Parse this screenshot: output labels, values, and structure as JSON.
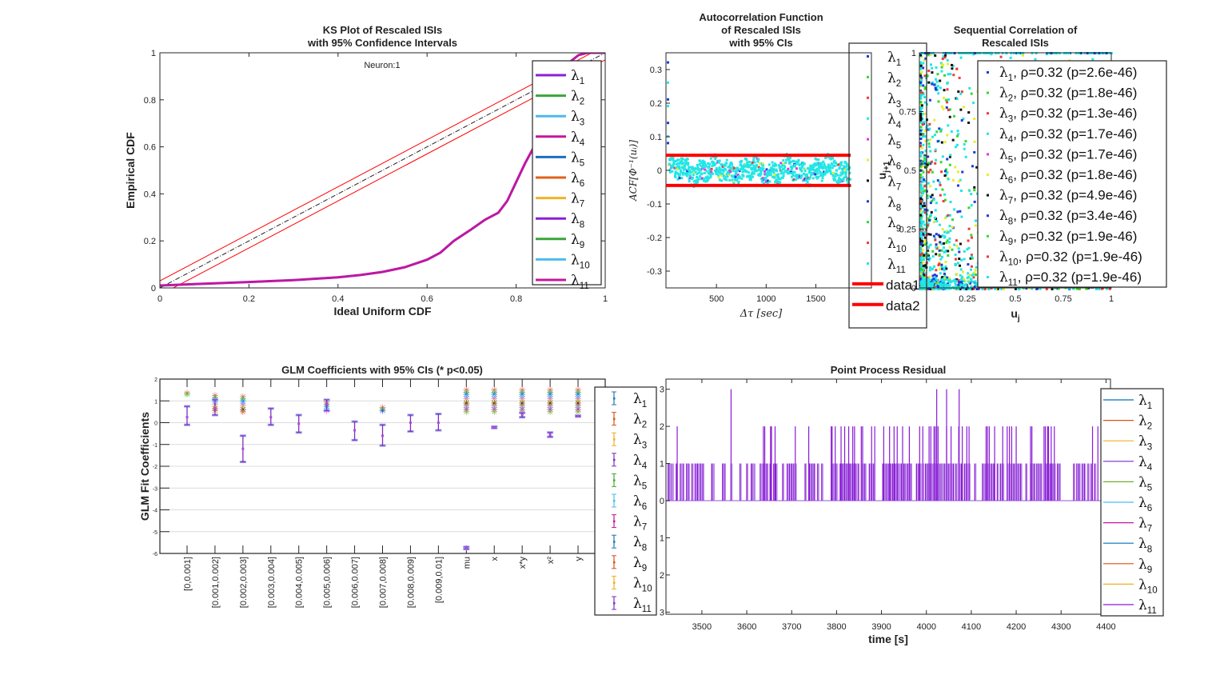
{
  "figure": {
    "background": "#ffffff"
  },
  "chart_data": [
    {
      "id": "ks",
      "type": "line",
      "title": "KS Plot of Rescaled ISIs",
      "subtitle": "with 95% Confidence Intervals",
      "annotation": "Neuron:1",
      "xlabel": "Ideal Uniform CDF",
      "ylabel": "Empirical CDF",
      "xlim": [
        0,
        1
      ],
      "ylim": [
        0,
        1
      ],
      "xticks": [
        "0",
        "0.2",
        "0.4",
        "0.6",
        "0.8",
        "1"
      ],
      "yticks": [
        "0",
        "0.2",
        "0.4",
        "0.6",
        "0.8",
        "1"
      ],
      "legend_position": "right-inside",
      "reference_line": {
        "name": "ideal",
        "x": [
          0,
          1
        ],
        "y": [
          0,
          1
        ],
        "color": "#000000",
        "style": "dash-dot"
      },
      "ci_lines": [
        {
          "name": "upper-ci",
          "x": [
            0,
            1
          ],
          "y": [
            0.03,
            1.03
          ],
          "color": "#ff0000"
        },
        {
          "name": "lower-ci",
          "x": [
            0,
            1
          ],
          "y": [
            -0.03,
            0.97
          ],
          "color": "#ff0000"
        }
      ],
      "curve_x": [
        0,
        0.1,
        0.2,
        0.3,
        0.4,
        0.45,
        0.5,
        0.55,
        0.6,
        0.63,
        0.66,
        0.7,
        0.73,
        0.76,
        0.78,
        0.8,
        0.82,
        0.84,
        0.86,
        0.88,
        0.9,
        0.92,
        0.94,
        0.96,
        1
      ],
      "curve_y": [
        0.01,
        0.018,
        0.025,
        0.033,
        0.045,
        0.055,
        0.068,
        0.088,
        0.12,
        0.15,
        0.2,
        0.25,
        0.29,
        0.32,
        0.37,
        0.45,
        0.53,
        0.6,
        0.66,
        0.75,
        0.85,
        0.96,
        0.99,
        1.0,
        1.0
      ],
      "series": [
        {
          "name": "λ1",
          "label": "λ",
          "sub": "1",
          "color": "#8b1fd6"
        },
        {
          "name": "λ2",
          "label": "λ",
          "sub": "2",
          "color": "#3aa53a"
        },
        {
          "name": "λ3",
          "label": "λ",
          "sub": "3",
          "color": "#4dbbea"
        },
        {
          "name": "λ4",
          "label": "λ",
          "sub": "4",
          "color": "#c4179b"
        },
        {
          "name": "λ5",
          "label": "λ",
          "sub": "5",
          "color": "#1a6fbf"
        },
        {
          "name": "λ6",
          "label": "λ",
          "sub": "6",
          "color": "#e0621b"
        },
        {
          "name": "λ7",
          "label": "λ",
          "sub": "7",
          "color": "#efb325"
        },
        {
          "name": "λ8",
          "label": "λ",
          "sub": "8",
          "color": "#8b1fd6"
        },
        {
          "name": "λ9",
          "label": "λ",
          "sub": "9",
          "color": "#3aa53a"
        },
        {
          "name": "λ10",
          "label": "λ",
          "sub": "10",
          "color": "#4dbbea"
        },
        {
          "name": "λ11",
          "label": "λ",
          "sub": "11",
          "color": "#c4179b"
        }
      ]
    },
    {
      "id": "acf",
      "type": "scatter",
      "title": [
        "Autocorrelation Function",
        "of Rescaled ISIs",
        "with 95% CIs"
      ],
      "xlabel": "Δτ [sec]",
      "ylabel": "ACF[Φ⁻¹(uᵢ)]",
      "xlim": [
        0,
        1850
      ],
      "ylim": [
        -0.35,
        0.35
      ],
      "xticks": [
        500,
        1000,
        1500
      ],
      "xtick_labels": [
        "500",
        "1000",
        "1500"
      ],
      "yticks": [
        0.3,
        0.2,
        0.1,
        0,
        -0.1,
        -0.2,
        -0.3
      ],
      "ytick_labels": [
        "0.3",
        "0.2",
        "0.1",
        "0",
        "-0.1",
        "-0.2",
        "-0.3"
      ],
      "ci_bounds": [
        0.045,
        -0.045
      ],
      "ci_color": "#ff0000",
      "initial_peak": [
        0.32,
        0.26,
        0.21,
        0.19,
        0.14,
        0.1,
        0.08
      ],
      "noise_band": [
        -0.06,
        0.07
      ],
      "point_color": "#22e6e6",
      "legend_position": "right-outside",
      "legend": [
        {
          "label": "λ",
          "sub": "1",
          "color": "#1f3bd6",
          "kind": "dot"
        },
        {
          "label": "λ",
          "sub": "2",
          "color": "#2fdc2f",
          "kind": "dot"
        },
        {
          "label": "λ",
          "sub": "3",
          "color": "#f03a3a",
          "kind": "dot"
        },
        {
          "label": "λ",
          "sub": "4",
          "color": "#22e6e6",
          "kind": "dot"
        },
        {
          "label": "λ",
          "sub": "5",
          "color": "#e632e6",
          "kind": "dot"
        },
        {
          "label": "λ",
          "sub": "6",
          "color": "#ecec2a",
          "kind": "dot"
        },
        {
          "label": "λ",
          "sub": "7",
          "color": "#111111",
          "kind": "dot"
        },
        {
          "label": "λ",
          "sub": "8",
          "color": "#1f3bd6",
          "kind": "dot"
        },
        {
          "label": "λ",
          "sub": "9",
          "color": "#2fdc2f",
          "kind": "dot"
        },
        {
          "label": "λ",
          "sub": "10",
          "color": "#f03a3a",
          "kind": "dot"
        },
        {
          "label": "λ",
          "sub": "11",
          "color": "#22e6e6",
          "kind": "dot"
        },
        {
          "label": "data1",
          "sub": "",
          "color": "#ff0000",
          "kind": "line"
        },
        {
          "label": "data2",
          "sub": "",
          "color": "#ff0000",
          "kind": "line"
        }
      ]
    },
    {
      "id": "seq",
      "type": "scatter",
      "title": [
        "Sequential Correlation of",
        "Rescaled ISIs"
      ],
      "xlabel": "u",
      "xlabel_sub": "j",
      "ylabel": "u",
      "ylabel_sub": "j+1",
      "xlim": [
        0,
        1
      ],
      "ylim": [
        0,
        1
      ],
      "xticks": [
        0.25,
        0.5,
        0.75,
        1
      ],
      "xtick_labels": [
        "0.25",
        "0.5",
        "0.75",
        "1"
      ],
      "yticks": [
        0,
        0.25,
        0.5,
        0.75,
        1
      ],
      "ytick_labels": [
        "0",
        "0.25",
        "0.5",
        "0.75",
        "1"
      ],
      "legend_position": "right-inside",
      "legend": [
        {
          "label": "λ",
          "sub": "1",
          "rest": ", ρ=0.32 (p=2.6e-46)",
          "color": "#1f3bd6"
        },
        {
          "label": "λ",
          "sub": "2",
          "rest": ", ρ=0.32 (p=1.8e-46)",
          "color": "#2fdc2f"
        },
        {
          "label": "λ",
          "sub": "3",
          "rest": ", ρ=0.32 (p=1.3e-46)",
          "color": "#f03a3a"
        },
        {
          "label": "λ",
          "sub": "4",
          "rest": ", ρ=0.32 (p=1.7e-46)",
          "color": "#22e6e6"
        },
        {
          "label": "λ",
          "sub": "5",
          "rest": ", ρ=0.32 (p=1.7e-46)",
          "color": "#e632e6"
        },
        {
          "label": "λ",
          "sub": "6",
          "rest": ", ρ=0.32 (p=1.8e-46)",
          "color": "#ecec2a"
        },
        {
          "label": "λ",
          "sub": "7",
          "rest": ", ρ=0.32 (p=4.9e-46)",
          "color": "#111111"
        },
        {
          "label": "λ",
          "sub": "8",
          "rest": ", ρ=0.32 (p=3.4e-46)",
          "color": "#1f3bd6"
        },
        {
          "label": "λ",
          "sub": "9",
          "rest": ", ρ=0.32 (p=1.9e-46)",
          "color": "#2fdc2f"
        },
        {
          "label": "λ",
          "sub": "10",
          "rest": ", ρ=0.32 (p=1.9e-46)",
          "color": "#f03a3a"
        },
        {
          "label": "λ",
          "sub": "11",
          "rest": ", ρ=0.32 (p=1.9e-46)",
          "color": "#22e6e6"
        }
      ]
    },
    {
      "id": "glm",
      "type": "errorbar",
      "title": "GLM Coefficients with 95% CIs (* p<0.05)",
      "ylabel": "GLM Fit Coefficients",
      "ylim": [
        -6,
        2
      ],
      "yticks": [
        2,
        1,
        0,
        -1,
        -2,
        -3,
        -4,
        -5,
        -6
      ],
      "ytick_labels": [
        "2",
        "1",
        "0",
        "-1",
        "-2",
        "-3",
        "-4",
        "-5",
        "-6"
      ],
      "grid": true,
      "categories": [
        "[0,0.001]",
        "[0.001,0.002]",
        "[0.002,0.003]",
        "[0.003,0.004]",
        "[0.004,0.005]",
        "[0.005,0.006]",
        "[0.006,0.007]",
        "[0.007,0.008]",
        "[0.008,0.009]",
        "[0.009,0.01]",
        "mu",
        "x",
        "x*y",
        "x²",
        "y"
      ],
      "lambda11_estimate": [
        0.25,
        0.65,
        -1.2,
        0.25,
        -0.05,
        0.85,
        -0.35,
        -0.6,
        0.0,
        0.0,
        -5.75,
        -0.22,
        0.35,
        -0.55,
        0.3
      ],
      "lambda11_ci_low": [
        -0.1,
        0.35,
        -1.8,
        -0.1,
        -0.45,
        0.55,
        -0.8,
        -1.05,
        -0.4,
        -0.35,
        -5.8,
        -0.25,
        0.25,
        -0.65,
        0.28
      ],
      "lambda11_ci_high": [
        0.75,
        1.05,
        -0.6,
        0.65,
        0.35,
        1.05,
        0.05,
        -0.1,
        0.35,
        0.4,
        -5.7,
        -0.18,
        0.45,
        -0.45,
        0.32
      ],
      "significant_stars": [
        {
          "cat": 0,
          "values": [
            1.35,
            1.3
          ]
        },
        {
          "cat": 1,
          "values": [
            1.25,
            1.15,
            1.05,
            0.95,
            0.85,
            0.75,
            0.65,
            0.55
          ]
        },
        {
          "cat": 2,
          "values": [
            1.2,
            1.1,
            1.0,
            0.9,
            0.8,
            0.7,
            0.6,
            0.5
          ]
        },
        {
          "cat": 5,
          "values": [
            0.95,
            0.85,
            0.75,
            0.65,
            0.55
          ]
        },
        {
          "cat": 7,
          "values": [
            0.7,
            0.6,
            0.55
          ]
        },
        {
          "cat": 10,
          "values": [
            1.5,
            1.4,
            1.3,
            1.2,
            1.1,
            1.0,
            0.9,
            0.8,
            0.7,
            0.6,
            0.5
          ]
        },
        {
          "cat": 11,
          "values": [
            1.5,
            1.4,
            1.3,
            1.2,
            1.1,
            1.0,
            0.9,
            0.8,
            0.7,
            0.6,
            0.5
          ]
        },
        {
          "cat": 12,
          "values": [
            1.5,
            1.4,
            1.3,
            1.2,
            1.1,
            1.0,
            0.9,
            0.8,
            0.7,
            0.6,
            0.5
          ]
        },
        {
          "cat": 13,
          "values": [
            1.5,
            1.4,
            1.3,
            1.2,
            1.1,
            1.0,
            0.9,
            0.8,
            0.7,
            0.6,
            0.5
          ]
        },
        {
          "cat": 14,
          "values": [
            1.5,
            1.4,
            1.3,
            1.2,
            1.1,
            1.0,
            0.9,
            0.8,
            0.7,
            0.6,
            0.5
          ]
        }
      ],
      "legend_position": "right-outside",
      "series": [
        {
          "label": "λ",
          "sub": "1",
          "color": "#1f77b4"
        },
        {
          "label": "λ",
          "sub": "2",
          "color": "#d95319"
        },
        {
          "label": "λ",
          "sub": "3",
          "color": "#edb120"
        },
        {
          "label": "λ",
          "sub": "4",
          "color": "#7e2fbd"
        },
        {
          "label": "λ",
          "sub": "5",
          "color": "#4aa834"
        },
        {
          "label": "λ",
          "sub": "6",
          "color": "#4dbeee"
        },
        {
          "label": "λ",
          "sub": "7",
          "color": "#c4179b"
        },
        {
          "label": "λ",
          "sub": "8",
          "color": "#1f77b4"
        },
        {
          "label": "λ",
          "sub": "9",
          "color": "#d95319"
        },
        {
          "label": "λ",
          "sub": "10",
          "color": "#edb120"
        },
        {
          "label": "λ",
          "sub": "11",
          "color": "#7e2fbd"
        }
      ]
    },
    {
      "id": "residual",
      "type": "line",
      "title": "Point Process Residual",
      "xlabel": "time [s]",
      "xlim": [
        3420,
        4410
      ],
      "ylim": [
        -3.1,
        3.1
      ],
      "xticks": [
        3500,
        3600,
        3700,
        3800,
        3900,
        4000,
        4100,
        4200,
        4300,
        4400
      ],
      "xtick_labels": [
        "3500",
        "3600",
        "3700",
        "3800",
        "3900",
        "4000",
        "4100",
        "4200",
        "4300",
        "4400"
      ],
      "yticks": [
        3,
        2,
        1,
        0,
        -1,
        -2,
        -3
      ],
      "ytick_labels": [
        "3",
        "2",
        "1",
        "0",
        "1",
        "2",
        "3"
      ],
      "spikes_to_1": [
        3425,
        3428,
        3431,
        3434,
        3443,
        3452,
        3458,
        3466,
        3470,
        3478,
        3485,
        3490,
        3493,
        3497,
        3502,
        3522,
        3525,
        3546,
        3550,
        3565,
        3585,
        3600,
        3610,
        3613,
        3616,
        3630,
        3636,
        3640,
        3645,
        3652,
        3660,
        3665,
        3680,
        3690,
        3695,
        3700,
        3704,
        3708,
        3730,
        3740,
        3745,
        3750,
        3758,
        3767,
        3790,
        3793,
        3797,
        3800,
        3808,
        3812,
        3815,
        3818,
        3822,
        3825,
        3830,
        3835,
        3838,
        3842,
        3848,
        3858,
        3863,
        3873,
        3878,
        3882,
        3903,
        3906,
        3910,
        3915,
        3920,
        3925,
        3930,
        3934,
        3937,
        3940,
        3944,
        3950,
        3953,
        3958,
        3965,
        3978,
        3983,
        3986,
        3992,
        3998,
        4002,
        4005,
        4008,
        4010,
        4013,
        4016,
        4020,
        4023,
        4026,
        4030,
        4033,
        4036,
        4040,
        4045,
        4050,
        4055,
        4060,
        4066,
        4073,
        4078,
        4085,
        4090,
        4095,
        4108,
        4125,
        4128,
        4132,
        4136,
        4140,
        4145,
        4150,
        4158,
        4165,
        4170,
        4180,
        4185,
        4190,
        4195,
        4200,
        4205,
        4210,
        4222,
        4232,
        4235,
        4240,
        4246,
        4250,
        4255,
        4265,
        4268,
        4272,
        4276,
        4280,
        4285,
        4292,
        4296,
        4328,
        4335,
        4340,
        4347,
        4352,
        4360,
        4367,
        4375
      ],
      "spikes_to_2": [
        3445,
        3637,
        3640,
        3653,
        3655,
        3663,
        3708,
        3738,
        3788,
        3790,
        3797,
        3810,
        3818,
        3827,
        3836,
        3840,
        3855,
        3858,
        3878,
        3885,
        3905,
        3918,
        3928,
        3935,
        3947,
        3962,
        3985,
        3992,
        4006,
        4010,
        4017,
        4020,
        4026,
        4045,
        4055,
        4072,
        4080,
        4090,
        4095,
        4133,
        4136,
        4140,
        4152,
        4170,
        4180,
        4185,
        4190,
        4200,
        4232,
        4235,
        4262,
        4265,
        4270,
        4272,
        4278,
        4285,
        4370,
        4382
      ],
      "spikes_to_3": [
        3565,
        4023,
        4045,
        4073
      ],
      "legend_position": "right-outside",
      "series": [
        {
          "label": "λ",
          "sub": "1",
          "color": "#0072bd"
        },
        {
          "label": "λ",
          "sub": "2",
          "color": "#d95319"
        },
        {
          "label": "λ",
          "sub": "3",
          "color": "#edb120"
        },
        {
          "label": "λ",
          "sub": "4",
          "color": "#7e2fbd"
        },
        {
          "label": "λ",
          "sub": "5",
          "color": "#77ac30"
        },
        {
          "label": "λ",
          "sub": "6",
          "color": "#4dbeee"
        },
        {
          "label": "λ",
          "sub": "7",
          "color": "#c4179b"
        },
        {
          "label": "λ",
          "sub": "8",
          "color": "#0072bd"
        },
        {
          "label": "λ",
          "sub": "9",
          "color": "#d95319"
        },
        {
          "label": "λ",
          "sub": "10",
          "color": "#edb120"
        },
        {
          "label": "λ",
          "sub": "11",
          "color": "#8a1ad6"
        }
      ]
    }
  ]
}
